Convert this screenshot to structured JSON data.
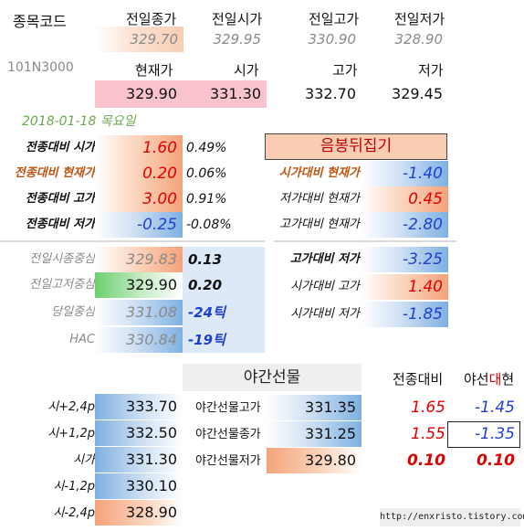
{
  "header": {
    "code_label": "종목코드",
    "code_value": "101N3000",
    "prev_labels": [
      "전일종가",
      "전일시가",
      "전일고가",
      "전일저가"
    ],
    "prev_values": [
      "329.70",
      "329.95",
      "330.90",
      "328.90"
    ],
    "cur_labels": [
      "현재가",
      "시가",
      "고가",
      "저가"
    ],
    "cur_values": [
      "329.90",
      "331.30",
      "332.70",
      "329.45"
    ]
  },
  "date": "2018-01-18  목요일",
  "left_rows": [
    {
      "label": "전종대비 시가",
      "value": "1.60",
      "pct": "0.49%"
    },
    {
      "label": "전종대비 현재가",
      "value": "0.20",
      "pct": "0.06%"
    },
    {
      "label": "전종대비 고가",
      "value": "3.00",
      "pct": "0.91%"
    },
    {
      "label": "전종대비 저가",
      "value": "-0.25",
      "pct": "-0.08%"
    }
  ],
  "pattern_title": "음봉뒤집기",
  "right_rows": [
    {
      "label": "시가대비 현재가",
      "value": "-1.40"
    },
    {
      "label": "저가대비 현재가",
      "value": "0.45"
    },
    {
      "label": "고가대비 현재가",
      "value": "-2.80"
    },
    {
      "label": "고가대비 저가",
      "value": "-3.25"
    },
    {
      "label": "시가대비 고가",
      "value": "1.40"
    },
    {
      "label": "시가대비 저가",
      "value": "-1.85"
    }
  ],
  "mid_rows": [
    {
      "label": "전일시종중심",
      "value": "329.83",
      "diff": "0.13"
    },
    {
      "label": "전일고저중심",
      "value": "329.90",
      "diff": "0.20"
    },
    {
      "label": "당일중심",
      "value": "331.08",
      "diff": "-24틱"
    },
    {
      "label": "HAC",
      "value": "330.84",
      "diff": "-19틱"
    }
  ],
  "night": {
    "title": "야간선물",
    "col1": "전종대비",
    "col2_pre": "야선",
    "col2_mid": "대",
    "col2_post": "현",
    "rows": [
      {
        "label": "야간선물고가",
        "value": "331.35",
        "d1": "1.65",
        "d2": "-1.45"
      },
      {
        "label": "야간선물종가",
        "value": "331.25",
        "d1": "1.55",
        "d2": "-1.35"
      },
      {
        "label": "야간선물저가",
        "value": "329.80",
        "d1": "0.10",
        "d2": "0.10"
      }
    ]
  },
  "levels": [
    {
      "label": "시+2,4p",
      "value": "333.70"
    },
    {
      "label": "시+1,2p",
      "value": "332.50"
    },
    {
      "label": "시가",
      "value": "331.30"
    },
    {
      "label": "시-1,2p",
      "value": "330.10"
    },
    {
      "label": "시-2,4p",
      "value": "328.90"
    }
  ],
  "footer_url": "http://enxristo.tistory.com",
  "colors": {
    "up": "#e00000",
    "down": "#1f3fd0",
    "accent_title_bg": "#f8cdb4"
  }
}
